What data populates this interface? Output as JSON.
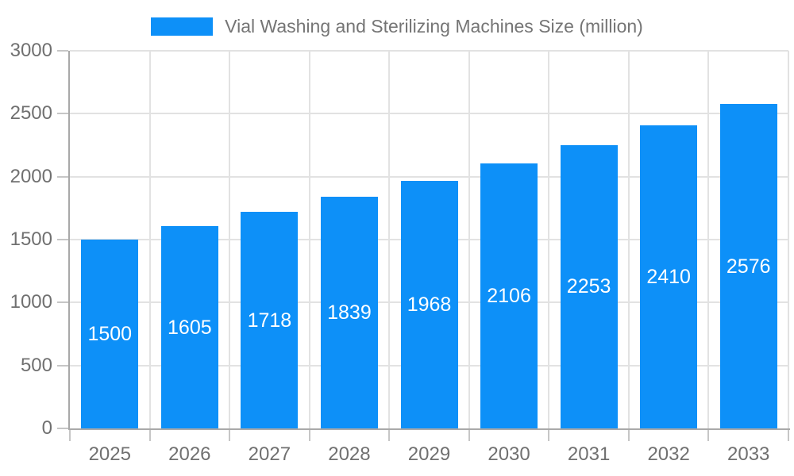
{
  "legend": {
    "label": "Vial Washing and Sterilizing Machines Size (million)"
  },
  "chart_data": {
    "type": "bar",
    "title": "Vial Washing and Sterilizing Machines Size (million)",
    "categories": [
      "2025",
      "2026",
      "2027",
      "2028",
      "2029",
      "2030",
      "2031",
      "2032",
      "2033"
    ],
    "series": [
      {
        "name": "Vial Washing and Sterilizing Machines Size (million)",
        "values": [
          1500,
          1605,
          1718,
          1839,
          1968,
          2106,
          2253,
          2410,
          2576
        ]
      }
    ],
    "bar_value_labels": [
      "1500",
      "1605",
      "1718",
      "1839",
      "1968",
      "2106",
      "2253",
      "2410",
      "2576"
    ],
    "xlabel": "",
    "ylabel": "",
    "ylim": [
      0,
      3000
    ],
    "y_ticks": [
      "0",
      "500",
      "1000",
      "1500",
      "2000",
      "2500",
      "3000"
    ],
    "grid": true,
    "legend_position": "top-center",
    "colors": {
      "bar": "#0d90f8",
      "bar_value_text": "#ffffff",
      "grid_line": "#e2e2e2",
      "axis_line": "#a9a9a9",
      "tick_mark": "#c6c6c6",
      "tick_label": "#707070",
      "legend_text": "#757575",
      "background": "#ffffff"
    }
  }
}
